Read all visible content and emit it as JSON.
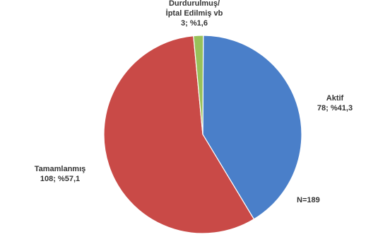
{
  "chart_data": {
    "type": "pie",
    "title": "",
    "total_label": "N=189",
    "slices": [
      {
        "category": "Aktif",
        "value": 78,
        "percent_label": "78; %41,3",
        "color": "#4a7fc9"
      },
      {
        "category": "Tamamlanmış",
        "value": 108,
        "percent_label": "108; %57,1",
        "color": "#c94a47"
      },
      {
        "category_line1": "Durdurulmuş/",
        "category_line2": "İptal Edilmiş vb",
        "value": 3,
        "percent_label": "3; %1,6",
        "color": "#98c15a"
      }
    ]
  }
}
